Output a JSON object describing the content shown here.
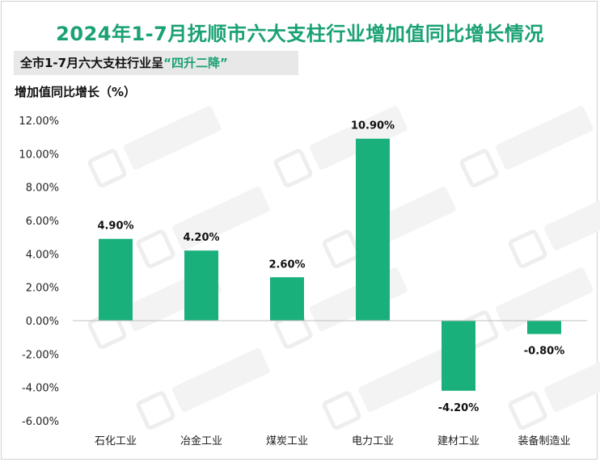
{
  "title": "2024年1-7月抚顺市六大支柱行业增加值同比增长情况",
  "subtitle": {
    "prefix": "全市1-7月六大支柱行业呈",
    "highlight": "“四升二降”"
  },
  "colors": {
    "bar": "#1ab07c",
    "title": "#1aa174",
    "axis": "#bfbfbf"
  },
  "chart_data": {
    "type": "bar",
    "ylabel": "增加值同比增长（%）",
    "categories": [
      "石化工业",
      "冶金工业",
      "煤炭工业",
      "电力工业",
      "建材工业",
      "装备制造业"
    ],
    "values": [
      4.9,
      4.2,
      2.6,
      10.9,
      -4.2,
      -0.8
    ],
    "value_labels": [
      "4.90%",
      "4.20%",
      "2.60%",
      "10.90%",
      "-4.20%",
      "-0.80%"
    ],
    "ylim": [
      -6,
      12
    ],
    "yticks": [
      12,
      10,
      8,
      6,
      4,
      2,
      0,
      -2,
      -4,
      -6
    ],
    "ytick_labels": [
      "12.00%",
      "10.00%",
      "8.00%",
      "6.00%",
      "4.00%",
      "2.00%",
      "0.00%",
      "-2.00%",
      "-4.00%",
      "-6.00%"
    ],
    "legend": "none",
    "grid": false
  }
}
